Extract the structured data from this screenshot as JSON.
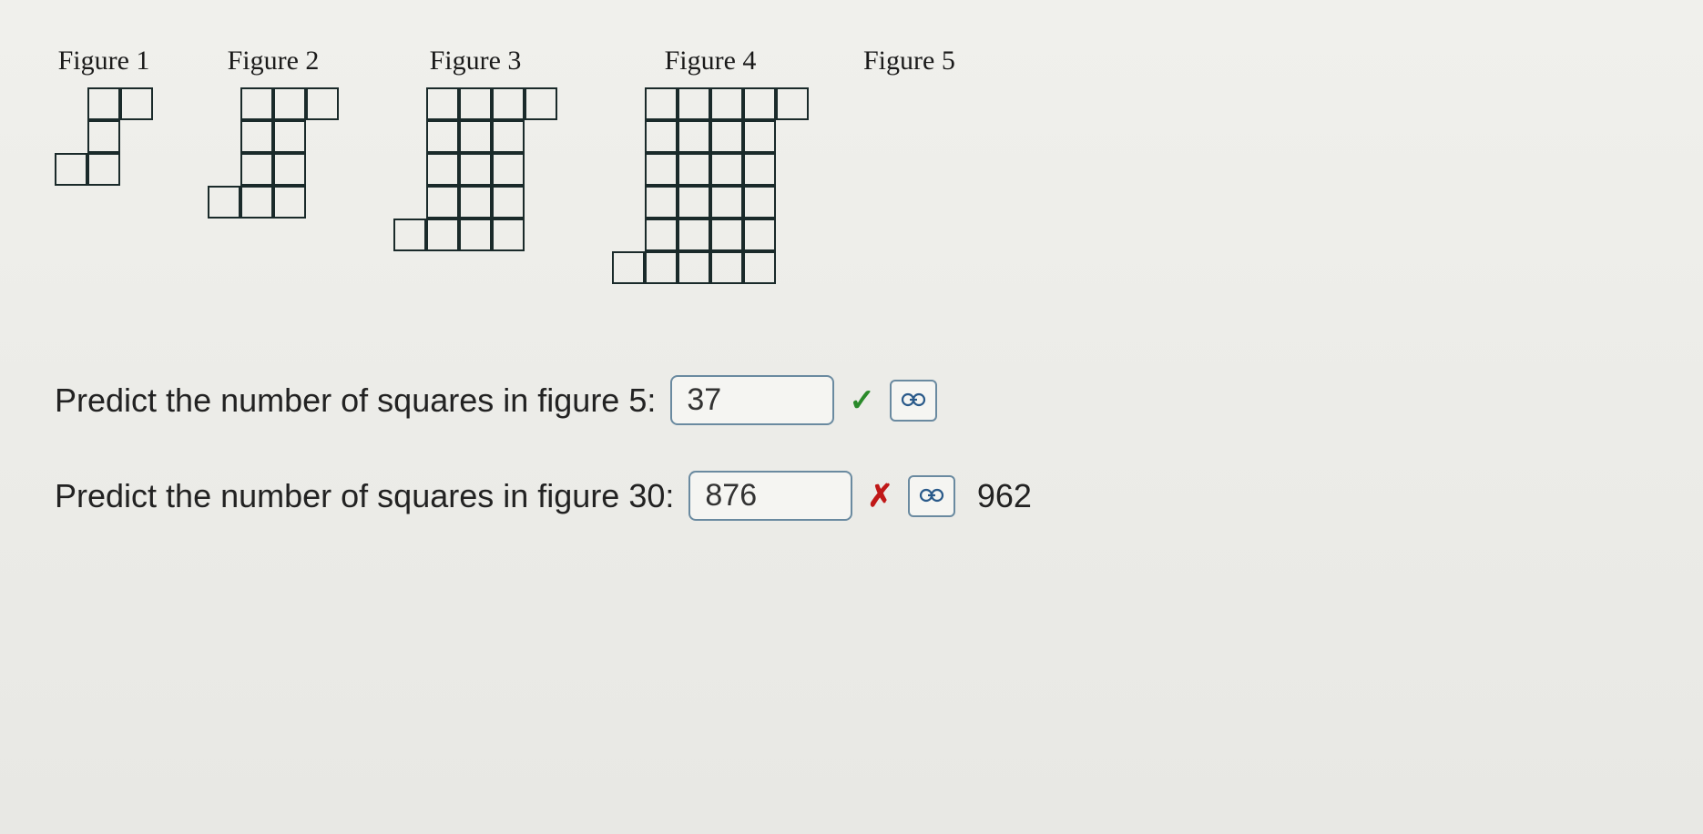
{
  "cell_size": 36,
  "cell_border_color": "#1a2a2a",
  "figures": [
    {
      "label": "Figure 1",
      "cols": 3,
      "rows": 3,
      "cells": [
        [
          0,
          1
        ],
        [
          0,
          2
        ],
        [
          1,
          1
        ],
        [
          2,
          0
        ],
        [
          2,
          1
        ]
      ]
    },
    {
      "label": "Figure 2",
      "cols": 4,
      "rows": 4,
      "cells": [
        [
          0,
          1
        ],
        [
          0,
          2
        ],
        [
          0,
          3
        ],
        [
          1,
          1
        ],
        [
          1,
          2
        ],
        [
          2,
          1
        ],
        [
          2,
          2
        ],
        [
          3,
          0
        ],
        [
          3,
          1
        ],
        [
          3,
          2
        ]
      ]
    },
    {
      "label": "Figure 3",
      "cols": 5,
      "rows": 5,
      "cells": [
        [
          0,
          1
        ],
        [
          0,
          2
        ],
        [
          0,
          3
        ],
        [
          0,
          4
        ],
        [
          1,
          1
        ],
        [
          1,
          2
        ],
        [
          1,
          3
        ],
        [
          2,
          1
        ],
        [
          2,
          2
        ],
        [
          2,
          3
        ],
        [
          3,
          1
        ],
        [
          3,
          2
        ],
        [
          3,
          3
        ],
        [
          4,
          0
        ],
        [
          4,
          1
        ],
        [
          4,
          2
        ],
        [
          4,
          3
        ]
      ]
    },
    {
      "label": "Figure 4",
      "cols": 6,
      "rows": 6,
      "cells": [
        [
          0,
          1
        ],
        [
          0,
          2
        ],
        [
          0,
          3
        ],
        [
          0,
          4
        ],
        [
          0,
          5
        ],
        [
          1,
          1
        ],
        [
          1,
          2
        ],
        [
          1,
          3
        ],
        [
          1,
          4
        ],
        [
          2,
          1
        ],
        [
          2,
          2
        ],
        [
          2,
          3
        ],
        [
          2,
          4
        ],
        [
          3,
          1
        ],
        [
          3,
          2
        ],
        [
          3,
          3
        ],
        [
          3,
          4
        ],
        [
          4,
          1
        ],
        [
          4,
          2
        ],
        [
          4,
          3
        ],
        [
          4,
          4
        ],
        [
          5,
          0
        ],
        [
          5,
          1
        ],
        [
          5,
          2
        ],
        [
          5,
          3
        ],
        [
          5,
          4
        ]
      ]
    },
    {
      "label": "Figure 5",
      "cols": 0,
      "rows": 0,
      "cells": []
    }
  ],
  "questions": [
    {
      "prompt": "Predict the number of squares in figure 5:",
      "answer": "37",
      "status": "correct",
      "correct_value": null
    },
    {
      "prompt": "Predict the number of squares in figure 30:",
      "answer": "876",
      "status": "incorrect",
      "correct_value": "962"
    }
  ],
  "icons": {
    "check": "✓",
    "cross": "✗",
    "link": "⚙"
  }
}
